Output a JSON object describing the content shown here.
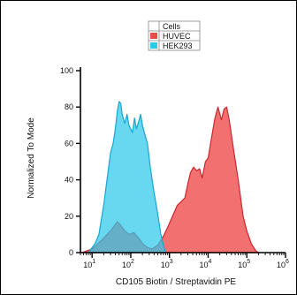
{
  "chart_data": {
    "type": "area",
    "title": "",
    "xlabel": "CD105 Biotin / Streptavidin PE",
    "ylabel": "Normalized To Mode",
    "x_scale": "log",
    "xlim": [
      5,
      1000000
    ],
    "ylim": [
      0,
      100
    ],
    "x_ticks": [
      {
        "base": "10",
        "exp": "1",
        "value": 10
      },
      {
        "base": "10",
        "exp": "2",
        "value": 100
      },
      {
        "base": "10",
        "exp": "3",
        "value": 1000
      },
      {
        "base": "10",
        "exp": "4",
        "value": 10000
      },
      {
        "base": "10",
        "exp": "5",
        "value": 100000
      },
      {
        "base": "10",
        "exp": "6",
        "value": 1000000
      }
    ],
    "y_ticks": [
      "0",
      "20",
      "40",
      "60",
      "80",
      "100"
    ],
    "legend": {
      "title": "Cells",
      "placement": "top-center",
      "entries": [
        {
          "label": "HUVEC",
          "color": "#f04848"
        },
        {
          "label": "HEK293",
          "color": "#2ec8ea"
        }
      ]
    },
    "series": [
      {
        "name": "HUVEC",
        "fill": "#f04848",
        "stroke": "#c8282f",
        "points": [
          [
            5.5,
            0
          ],
          [
            10,
            2
          ],
          [
            18,
            7
          ],
          [
            30,
            12
          ],
          [
            45,
            17
          ],
          [
            55,
            15
          ],
          [
            70,
            12
          ],
          [
            90,
            10
          ],
          [
            120,
            11
          ],
          [
            160,
            8
          ],
          [
            200,
            5
          ],
          [
            260,
            3
          ],
          [
            350,
            2
          ],
          [
            500,
            4
          ],
          [
            700,
            9
          ],
          [
            900,
            14
          ],
          [
            1200,
            20
          ],
          [
            1600,
            26
          ],
          [
            2000,
            28
          ],
          [
            2500,
            30
          ],
          [
            3000,
            38
          ],
          [
            3500,
            44
          ],
          [
            4200,
            47
          ],
          [
            5000,
            45
          ],
          [
            6000,
            46
          ],
          [
            7000,
            41
          ],
          [
            8500,
            50
          ],
          [
            10000,
            52
          ],
          [
            12000,
            62
          ],
          [
            15000,
            74
          ],
          [
            18000,
            80
          ],
          [
            22000,
            73
          ],
          [
            26000,
            79
          ],
          [
            30000,
            80
          ],
          [
            35000,
            73
          ],
          [
            45000,
            57
          ],
          [
            60000,
            40
          ],
          [
            80000,
            20
          ],
          [
            100000,
            12
          ],
          [
            130000,
            5
          ],
          [
            170000,
            1
          ],
          [
            200000,
            0
          ]
        ]
      },
      {
        "name": "HEK293",
        "fill": "#2ec8ea",
        "stroke": "#1aa6d2",
        "points": [
          [
            8,
            0
          ],
          [
            12,
            5
          ],
          [
            15,
            10
          ],
          [
            20,
            26
          ],
          [
            25,
            42
          ],
          [
            30,
            55
          ],
          [
            35,
            60
          ],
          [
            40,
            68
          ],
          [
            45,
            78
          ],
          [
            50,
            83
          ],
          [
            55,
            82
          ],
          [
            60,
            76
          ],
          [
            70,
            71
          ],
          [
            80,
            76
          ],
          [
            90,
            70
          ],
          [
            100,
            68
          ],
          [
            110,
            66
          ],
          [
            125,
            74
          ],
          [
            140,
            68
          ],
          [
            160,
            72
          ],
          [
            180,
            76
          ],
          [
            200,
            70
          ],
          [
            230,
            65
          ],
          [
            270,
            60
          ],
          [
            320,
            47
          ],
          [
            400,
            33
          ],
          [
            500,
            21
          ],
          [
            600,
            10
          ],
          [
            700,
            4
          ],
          [
            800,
            0
          ]
        ]
      }
    ]
  }
}
